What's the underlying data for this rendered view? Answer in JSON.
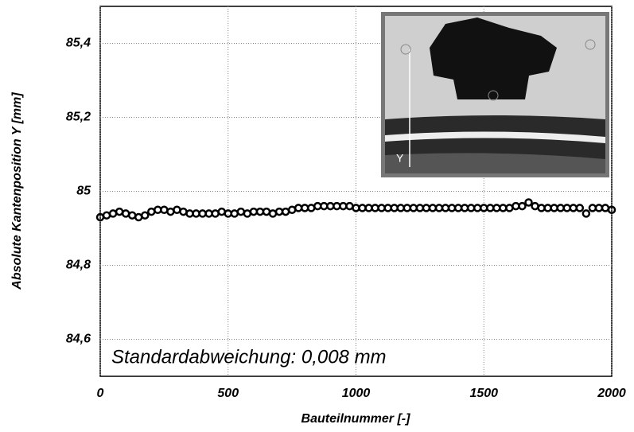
{
  "chart_data": {
    "type": "scatter",
    "x_label": "Bauteilnummer [-]",
    "y_label": "Absolute Kantenposition Y [mm]",
    "annotation": "Standardabweichung: 0,008 mm",
    "inset_label": "Y",
    "xlim": [
      0,
      2000
    ],
    "xticks": [
      0,
      500,
      1000,
      1500,
      2000
    ],
    "ylim": [
      84.5,
      85.5
    ],
    "yticks": [
      {
        "value": 84.6,
        "label": "84,6"
      },
      {
        "value": 84.8,
        "label": "84,8"
      },
      85,
      {
        "value": 85.2,
        "label": "85,2"
      },
      {
        "value": 85.4,
        "label": "85,4"
      }
    ],
    "grid": true,
    "series": [
      {
        "color": "#000000",
        "x": [
          0,
          25,
          50,
          75,
          100,
          125,
          150,
          175,
          200,
          225,
          250,
          275,
          300,
          325,
          350,
          375,
          400,
          425,
          450,
          475,
          500,
          525,
          550,
          575,
          600,
          625,
          650,
          675,
          700,
          725,
          750,
          775,
          800,
          825,
          850,
          875,
          900,
          925,
          950,
          975,
          1000,
          1025,
          1050,
          1075,
          1100,
          1125,
          1150,
          1175,
          1200,
          1225,
          1250,
          1275,
          1300,
          1325,
          1350,
          1375,
          1400,
          1425,
          1450,
          1475,
          1500,
          1525,
          1550,
          1575,
          1600,
          1625,
          1650,
          1675,
          1700,
          1725,
          1750,
          1775,
          1800,
          1825,
          1850,
          1875,
          1900,
          1925,
          1950,
          1975,
          2000
        ],
        "values": [
          84.93,
          84.935,
          84.94,
          84.945,
          84.94,
          84.935,
          84.93,
          84.935,
          84.945,
          84.95,
          84.95,
          84.945,
          84.95,
          84.945,
          84.94,
          84.94,
          84.94,
          84.94,
          84.94,
          84.945,
          84.94,
          84.94,
          84.945,
          84.94,
          84.945,
          84.945,
          84.945,
          84.94,
          84.945,
          84.945,
          84.95,
          84.955,
          84.955,
          84.955,
          84.96,
          84.96,
          84.96,
          84.96,
          84.96,
          84.96,
          84.955,
          84.955,
          84.955,
          84.955,
          84.955,
          84.955,
          84.955,
          84.955,
          84.955,
          84.955,
          84.955,
          84.955,
          84.955,
          84.955,
          84.955,
          84.955,
          84.955,
          84.955,
          84.955,
          84.955,
          84.955,
          84.955,
          84.955,
          84.955,
          84.955,
          84.96,
          84.96,
          84.97,
          84.96,
          84.955,
          84.955,
          84.955,
          84.955,
          84.955,
          84.955,
          84.955,
          84.94,
          84.955,
          84.955,
          84.955,
          84.95
        ]
      }
    ]
  }
}
